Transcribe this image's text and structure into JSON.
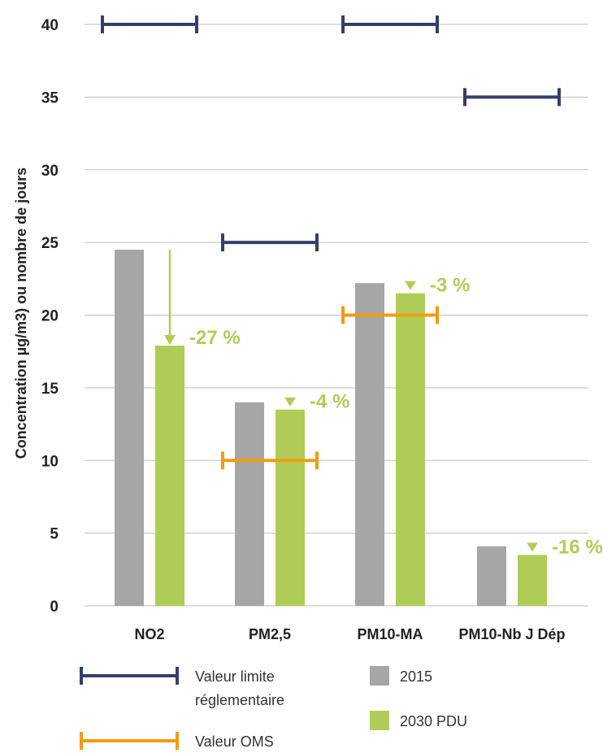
{
  "colors": {
    "bar_2015": "#a6a6a6",
    "bar_2030": "#afcd56",
    "limit": "#353e6b",
    "oms": "#f39a13",
    "annotation": "#afcd56",
    "grid": "#bdbdbd",
    "text": "#222222"
  },
  "legend": {
    "limit_label": [
      "Valeur limite",
      "réglementaire"
    ],
    "oms_label": "Valeur OMS",
    "series_2015": "2015",
    "series_2030": "2030 PDU"
  },
  "chart_data": {
    "type": "bar",
    "ylabel": "Concentration µg/m3) ou nombre de jours",
    "xlabel": "",
    "ylim": [
      0,
      40
    ],
    "yticks": [
      0,
      5,
      10,
      15,
      20,
      25,
      30,
      35,
      40
    ],
    "grid": true,
    "categories": [
      "NO2",
      "PM2,5",
      "PM10-MA",
      "PM10-Nb J Dép"
    ],
    "series": [
      {
        "name": "2015",
        "values": [
          24.5,
          14.0,
          22.2,
          4.1
        ]
      },
      {
        "name": "2030 PDU",
        "values": [
          17.9,
          13.5,
          21.5,
          3.5
        ]
      }
    ],
    "valeur_limite_reglementaire": [
      40,
      25,
      40,
      35
    ],
    "valeur_oms": [
      null,
      10,
      20,
      null
    ],
    "change_labels": [
      "-27 %",
      "-4 %",
      "-3 %",
      "-16 %"
    ]
  }
}
